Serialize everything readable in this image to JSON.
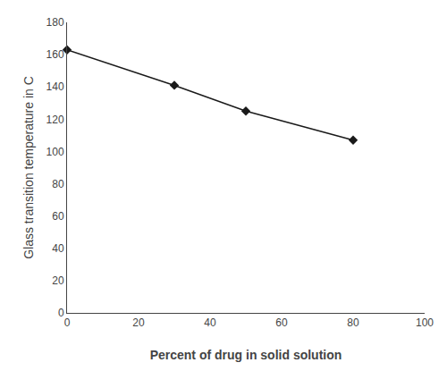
{
  "chart_data": {
    "type": "line",
    "x": [
      0,
      30,
      50,
      80
    ],
    "values": [
      163,
      141,
      125,
      107
    ],
    "color": "#1a1a1a",
    "marker": "diamond",
    "xlabel": "Percent of drug in solid solution",
    "ylabel": "Glass transition temperature in C",
    "xlim": [
      0,
      100
    ],
    "ylim": [
      0,
      180
    ],
    "xticks": [
      0,
      20,
      40,
      60,
      80,
      100
    ],
    "yticks": [
      0,
      20,
      40,
      60,
      80,
      100,
      120,
      140,
      160,
      180
    ],
    "grid": false
  }
}
